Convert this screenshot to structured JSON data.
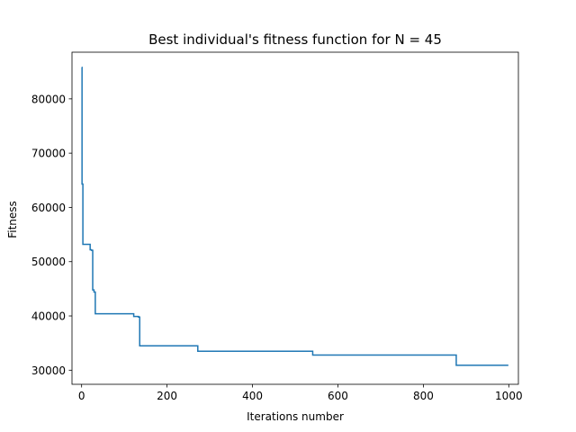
{
  "chart_data": {
    "type": "line",
    "title": "Best individual's fitness function for N = 45",
    "xlabel": "Iterations number",
    "ylabel": "Fitness",
    "xlim": [
      -22.5,
      1022.5
    ],
    "ylim": [
      27400,
      88600
    ],
    "xticks": [
      0,
      200,
      400,
      600,
      800,
      1000
    ],
    "xtick_labels": [
      "0",
      "200",
      "400",
      "600",
      "800",
      "1000"
    ],
    "yticks": [
      30000,
      40000,
      50000,
      60000,
      70000,
      80000
    ],
    "ytick_labels": [
      "30000",
      "40000",
      "50000",
      "60000",
      "70000",
      "80000"
    ],
    "grid": false,
    "line_color": "#1f77b4",
    "series": [
      {
        "x": [
          0,
          1,
          1,
          3,
          3,
          20,
          20,
          23,
          23,
          26,
          26,
          29,
          29,
          32,
          32,
          122,
          122,
          133,
          133,
          136,
          136,
          272,
          272,
          541,
          541,
          877,
          877,
          999
        ],
        "y": [
          85800,
          85800,
          64300,
          64300,
          53200,
          53200,
          52200,
          52200,
          52100,
          52100,
          44800,
          44800,
          44400,
          44400,
          40400,
          40400,
          39900,
          39900,
          39800,
          39800,
          34500,
          34500,
          33500,
          33500,
          32800,
          32800,
          30900,
          30900
        ]
      }
    ]
  }
}
